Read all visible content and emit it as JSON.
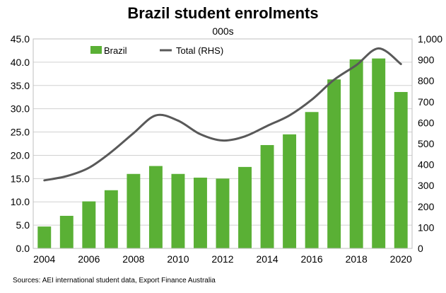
{
  "chart_data": {
    "type": "bar",
    "title": "Brazil student enrolments",
    "subtitle": "000s",
    "source": "Sources: AEI international student data, Export Finance Australia",
    "x": [
      2004,
      2005,
      2006,
      2007,
      2008,
      2009,
      2010,
      2011,
      2012,
      2013,
      2014,
      2015,
      2016,
      2017,
      2018,
      2019,
      2020
    ],
    "x_tick_labels": [
      "2004",
      "2006",
      "2008",
      "2010",
      "2012",
      "2014",
      "2016",
      "2018",
      "2020"
    ],
    "y_left": {
      "ylim": [
        0,
        45
      ],
      "ticks": [
        "0.0",
        "5.0",
        "10.0",
        "15.0",
        "20.0",
        "25.0",
        "30.0",
        "35.0",
        "40.0",
        "45.0"
      ]
    },
    "y_right": {
      "ylim": [
        0,
        1000
      ],
      "ticks": [
        "0",
        "100",
        "200",
        "300",
        "400",
        "500",
        "600",
        "700",
        "800",
        "900",
        "1,000"
      ]
    },
    "series": [
      {
        "name": "Brazil",
        "type": "bar",
        "axis": "left",
        "color": "#5ab035",
        "values": [
          4.7,
          7.0,
          10.1,
          12.5,
          16.0,
          17.7,
          16.0,
          15.2,
          15.0,
          17.5,
          22.2,
          24.5,
          29.3,
          36.3,
          40.6,
          40.8,
          33.6
        ]
      },
      {
        "name": "Total (RHS)",
        "type": "line",
        "axis": "right",
        "color": "#595959",
        "values": [
          325,
          345,
          385,
          460,
          550,
          635,
          610,
          545,
          515,
          535,
          585,
          635,
          710,
          805,
          875,
          955,
          880
        ]
      }
    ],
    "legend": "top-left inside plot",
    "grid": "horizontal"
  }
}
